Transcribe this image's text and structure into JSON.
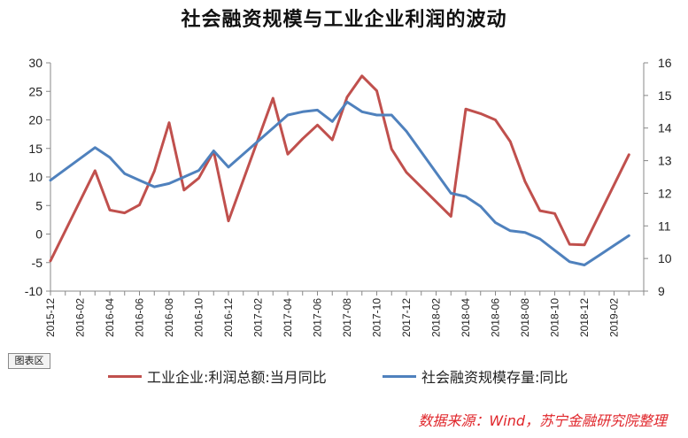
{
  "title": "社会融资规模与工业企业利润的波动",
  "chart_area_button": "图表区",
  "source_note": "数据来源：Wind，苏宁金融研究院整理",
  "colors": {
    "series1": "#c0504d",
    "series2": "#4f81bd",
    "axis": "#888888"
  },
  "chart_data": {
    "type": "line",
    "title": "社会融资规模与工业企业利润的波动",
    "x_ticks": [
      "2015-12",
      "2016-02",
      "2016-04",
      "2016-06",
      "2016-08",
      "2016-10",
      "2016-12",
      "2017-02",
      "2017-04",
      "2017-06",
      "2017-08",
      "2017-10",
      "2017-12",
      "2018-02",
      "2018-04",
      "2018-06",
      "2018-08",
      "2018-10",
      "2018-12",
      "2019-02"
    ],
    "y_left": {
      "min": -10,
      "max": 30,
      "step": 5
    },
    "y_right": {
      "min": 9,
      "max": 16,
      "step": 1
    },
    "legend_position": "bottom",
    "series": [
      {
        "name": "工业企业:利润总额:当月同比",
        "axis": "left",
        "points": [
          [
            "2015-12",
            -4.7
          ],
          [
            "2016-03",
            11.1
          ],
          [
            "2016-04",
            4.2
          ],
          [
            "2016-05",
            3.7
          ],
          [
            "2016-06",
            5.1
          ],
          [
            "2016-07",
            11.0
          ],
          [
            "2016-08",
            19.5
          ],
          [
            "2016-09",
            7.7
          ],
          [
            "2016-10",
            9.8
          ],
          [
            "2016-11",
            14.5
          ],
          [
            "2016-12",
            2.3
          ],
          [
            "2017-03",
            23.8
          ],
          [
            "2017-04",
            14.0
          ],
          [
            "2017-05",
            16.7
          ],
          [
            "2017-06",
            19.1
          ],
          [
            "2017-07",
            16.5
          ],
          [
            "2017-08",
            24.0
          ],
          [
            "2017-09",
            27.7
          ],
          [
            "2017-10",
            25.1
          ],
          [
            "2017-11",
            14.9
          ],
          [
            "2017-12",
            10.8
          ],
          [
            "2018-03",
            3.1
          ],
          [
            "2018-04",
            21.9
          ],
          [
            "2018-05",
            21.1
          ],
          [
            "2018-06",
            20.0
          ],
          [
            "2018-07",
            16.2
          ],
          [
            "2018-08",
            9.2
          ],
          [
            "2018-09",
            4.1
          ],
          [
            "2018-10",
            3.6
          ],
          [
            "2018-11",
            -1.8
          ],
          [
            "2018-12",
            -1.9
          ],
          [
            "2019-03",
            13.9
          ]
        ]
      },
      {
        "name": "社会融资规模存量:同比",
        "axis": "right",
        "points": [
          [
            "2015-12",
            12.4
          ],
          [
            "2016-03",
            13.4
          ],
          [
            "2016-04",
            13.1
          ],
          [
            "2016-05",
            12.6
          ],
          [
            "2016-06",
            12.4
          ],
          [
            "2016-07",
            12.2
          ],
          [
            "2016-08",
            12.3
          ],
          [
            "2016-09",
            12.5
          ],
          [
            "2016-10",
            12.7
          ],
          [
            "2016-11",
            13.3
          ],
          [
            "2016-12",
            12.8
          ],
          [
            "2017-03",
            14.0
          ],
          [
            "2017-04",
            14.4
          ],
          [
            "2017-05",
            14.5
          ],
          [
            "2017-06",
            14.55
          ],
          [
            "2017-07",
            14.2
          ],
          [
            "2017-08",
            14.8
          ],
          [
            "2017-09",
            14.5
          ],
          [
            "2017-10",
            14.4
          ],
          [
            "2017-11",
            14.4
          ],
          [
            "2017-12",
            13.9
          ],
          [
            "2018-03",
            12.0
          ],
          [
            "2018-04",
            11.9
          ],
          [
            "2018-05",
            11.6
          ],
          [
            "2018-06",
            11.1
          ],
          [
            "2018-07",
            10.85
          ],
          [
            "2018-08",
            10.8
          ],
          [
            "2018-09",
            10.6
          ],
          [
            "2018-10",
            10.25
          ],
          [
            "2018-11",
            9.9
          ],
          [
            "2018-12",
            9.8
          ],
          [
            "2019-01",
            10.1
          ],
          [
            "2019-02",
            10.4
          ],
          [
            "2019-03",
            10.7
          ]
        ]
      }
    ]
  }
}
